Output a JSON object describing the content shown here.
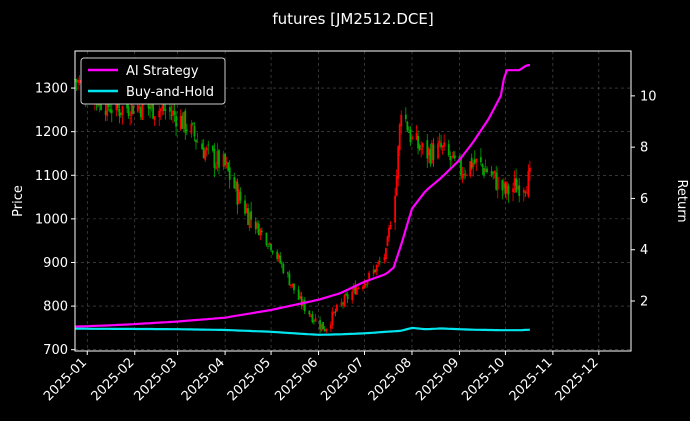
{
  "chart_data": {
    "type": "line",
    "title": "futures [JM2512.DCE]",
    "ylabel": "Price",
    "y2label": "Return",
    "xlim": [
      "2024-12-24",
      "2025-12-22"
    ],
    "ylim": [
      697,
      1385
    ],
    "y2lim": [
      0.05,
      11.75
    ],
    "x_ticks": [
      "2025-01",
      "2025-02",
      "2025-03",
      "2025-04",
      "2025-05",
      "2025-06",
      "2025-07",
      "2025-08",
      "2025-09",
      "2025-10",
      "2025-11",
      "2025-12"
    ],
    "y_ticks": [
      700,
      800,
      900,
      1000,
      1100,
      1200,
      1300
    ],
    "y2_ticks": [
      2,
      4,
      6,
      8,
      10
    ],
    "grid": true,
    "legend_position": "top-left",
    "colors": {
      "up_candle": "#ff0000",
      "down_candle": "#00aa00",
      "ai_strategy": "#ff00ff",
      "buy_and_hold": "#00e5ee",
      "background": "#000000",
      "grid": "#555555"
    },
    "candlestick_close": {
      "dates": [
        "2024-12-24",
        "2025-01-02",
        "2025-01-10",
        "2025-01-20",
        "2025-02-01",
        "2025-02-10",
        "2025-02-20",
        "2025-03-01",
        "2025-03-10",
        "2025-03-20",
        "2025-04-01",
        "2025-04-10",
        "2025-04-20",
        "2025-05-01",
        "2025-05-10",
        "2025-05-20",
        "2025-06-01",
        "2025-06-05",
        "2025-06-15",
        "2025-06-25",
        "2025-07-05",
        "2025-07-15",
        "2025-07-22",
        "2025-07-25",
        "2025-08-01",
        "2025-08-10",
        "2025-08-20",
        "2025-09-01",
        "2025-09-10",
        "2025-09-20",
        "2025-10-01",
        "2025-10-10",
        "2025-10-17"
      ],
      "values": [
        1320,
        1290,
        1270,
        1250,
        1260,
        1255,
        1250,
        1235,
        1200,
        1150,
        1120,
        1050,
        990,
        940,
        880,
        810,
        760,
        750,
        800,
        840,
        870,
        920,
        1100,
        1260,
        1180,
        1150,
        1160,
        1110,
        1130,
        1110,
        1060,
        1080,
        1090
      ]
    },
    "series": [
      {
        "name": "AI Strategy",
        "axis": "right",
        "x": [
          "2024-12-24",
          "2025-01-15",
          "2025-02-01",
          "2025-03-01",
          "2025-04-01",
          "2025-05-01",
          "2025-06-01",
          "2025-06-15",
          "2025-07-01",
          "2025-07-15",
          "2025-07-20",
          "2025-07-25",
          "2025-08-01",
          "2025-08-10",
          "2025-08-20",
          "2025-09-01",
          "2025-09-10",
          "2025-09-20",
          "2025-09-28",
          "2025-10-01",
          "2025-10-10",
          "2025-10-15",
          "2025-10-17"
        ],
        "values": [
          1.0,
          1.05,
          1.1,
          1.2,
          1.35,
          1.65,
          2.05,
          2.3,
          2.75,
          3.05,
          3.3,
          4.2,
          5.6,
          6.3,
          6.8,
          7.5,
          8.2,
          9.1,
          10.0,
          11.0,
          11.0,
          11.2,
          11.2
        ]
      },
      {
        "name": "Buy-and-Hold",
        "axis": "right",
        "x": [
          "2024-12-24",
          "2025-02-01",
          "2025-03-01",
          "2025-04-01",
          "2025-05-01",
          "2025-06-01",
          "2025-06-15",
          "2025-07-01",
          "2025-07-25",
          "2025-08-01",
          "2025-08-10",
          "2025-08-20",
          "2025-09-01",
          "2025-09-10",
          "2025-10-01",
          "2025-10-10",
          "2025-10-17"
        ],
        "values": [
          0.92,
          0.91,
          0.9,
          0.87,
          0.8,
          0.68,
          0.7,
          0.74,
          0.84,
          0.95,
          0.9,
          0.93,
          0.9,
          0.88,
          0.86,
          0.86,
          0.88
        ]
      }
    ]
  }
}
